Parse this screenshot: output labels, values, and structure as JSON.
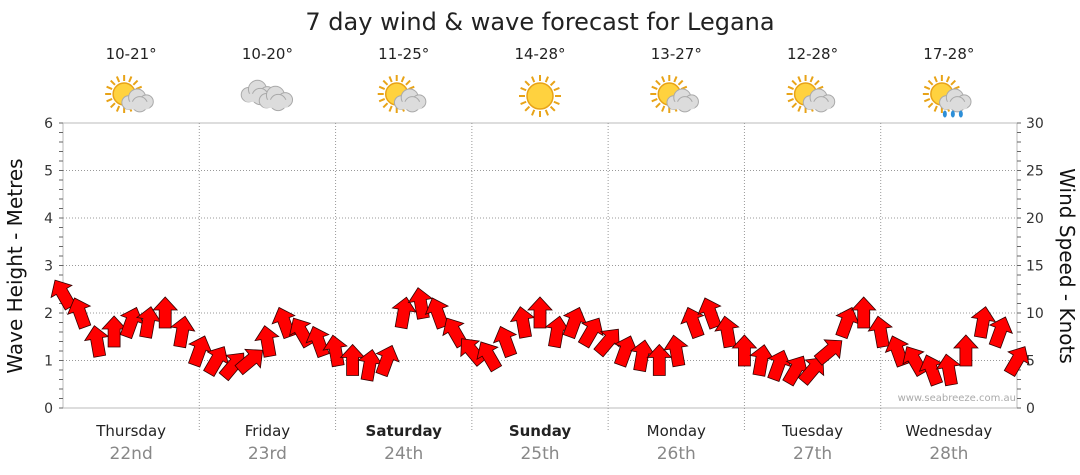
{
  "colors": {
    "arrow": "#ff0000",
    "arrow_stroke": "#330000",
    "grid": "#999999",
    "sun": "#ffd23f",
    "cloud": "#dcdcdc"
  },
  "chart_data": {
    "type": "line",
    "title": "7 day wind & wave forecast for Legana",
    "ylabel_left": "Wave Height - Metres",
    "ylabel_right": "Wind Speed - Knots",
    "ylim_left": [
      0,
      6
    ],
    "ylim_right": [
      0,
      30
    ],
    "yticks_left": [
      "0",
      "1",
      "2",
      "3",
      "4",
      "5",
      "6"
    ],
    "yticks_right": [
      "0",
      "5",
      "10",
      "15",
      "20",
      "25",
      "30"
    ],
    "days": [
      {
        "name": "Thursday",
        "date": "22nd",
        "temp": "10-21°",
        "icon": "sun-cloud-icon",
        "bold": false
      },
      {
        "name": "Friday",
        "date": "23rd",
        "temp": "10-20°",
        "icon": "cloud-icon",
        "bold": false
      },
      {
        "name": "Saturday",
        "date": "24th",
        "temp": "11-25°",
        "icon": "sun-cloud-icon",
        "bold": true
      },
      {
        "name": "Sunday",
        "date": "25th",
        "temp": "14-28°",
        "icon": "sun-icon",
        "bold": true
      },
      {
        "name": "Monday",
        "date": "26th",
        "temp": "13-27°",
        "icon": "sun-cloud-icon",
        "bold": false
      },
      {
        "name": "Tuesday",
        "date": "27th",
        "temp": "12-28°",
        "icon": "sun-cloud-icon",
        "bold": false
      },
      {
        "name": "Wednesday",
        "date": "28th",
        "temp": "17-28°",
        "icon": "sun-rain-icon",
        "bold": false
      }
    ],
    "series": [
      {
        "name": "Wind Speed (knots)",
        "hours_from_start": [
          0,
          3,
          6,
          9,
          12,
          15,
          18,
          21,
          24,
          27,
          30,
          33,
          36,
          39,
          42,
          45,
          48,
          51,
          54,
          57,
          60,
          63,
          66,
          69,
          72,
          75,
          78,
          81,
          84,
          87,
          90,
          93,
          96,
          99,
          102,
          105,
          108,
          111,
          114,
          117,
          120,
          123,
          126,
          129,
          132,
          135,
          138,
          141,
          144,
          147,
          150,
          153,
          156,
          159,
          162,
          165,
          168
        ],
        "values": [
          12,
          10,
          7,
          8,
          9,
          9,
          10,
          8,
          6,
          5,
          4.5,
          5,
          7,
          9,
          8,
          7,
          6,
          5,
          4.5,
          5,
          10,
          11,
          10,
          8,
          6,
          5.5,
          7,
          9,
          10,
          8,
          9,
          8,
          7,
          6,
          5.5,
          5,
          6,
          9,
          10,
          8,
          6,
          5,
          4.5,
          4,
          4,
          6,
          9,
          10,
          8,
          6,
          5,
          4,
          4,
          6,
          9,
          8,
          5
        ],
        "direction_deg": [
          150,
          160,
          170,
          180,
          200,
          190,
          180,
          190,
          200,
          210,
          220,
          230,
          170,
          160,
          150,
          160,
          170,
          180,
          190,
          200,
          190,
          170,
          160,
          150,
          140,
          150,
          160,
          170,
          180,
          190,
          200,
          210,
          220,
          200,
          190,
          180,
          170,
          160,
          160,
          170,
          180,
          190,
          200,
          210,
          220,
          230,
          200,
          180,
          170,
          160,
          150,
          160,
          170,
          180,
          190,
          200,
          210
        ]
      }
    ],
    "watermark": "www.seabreeze.com.au"
  }
}
